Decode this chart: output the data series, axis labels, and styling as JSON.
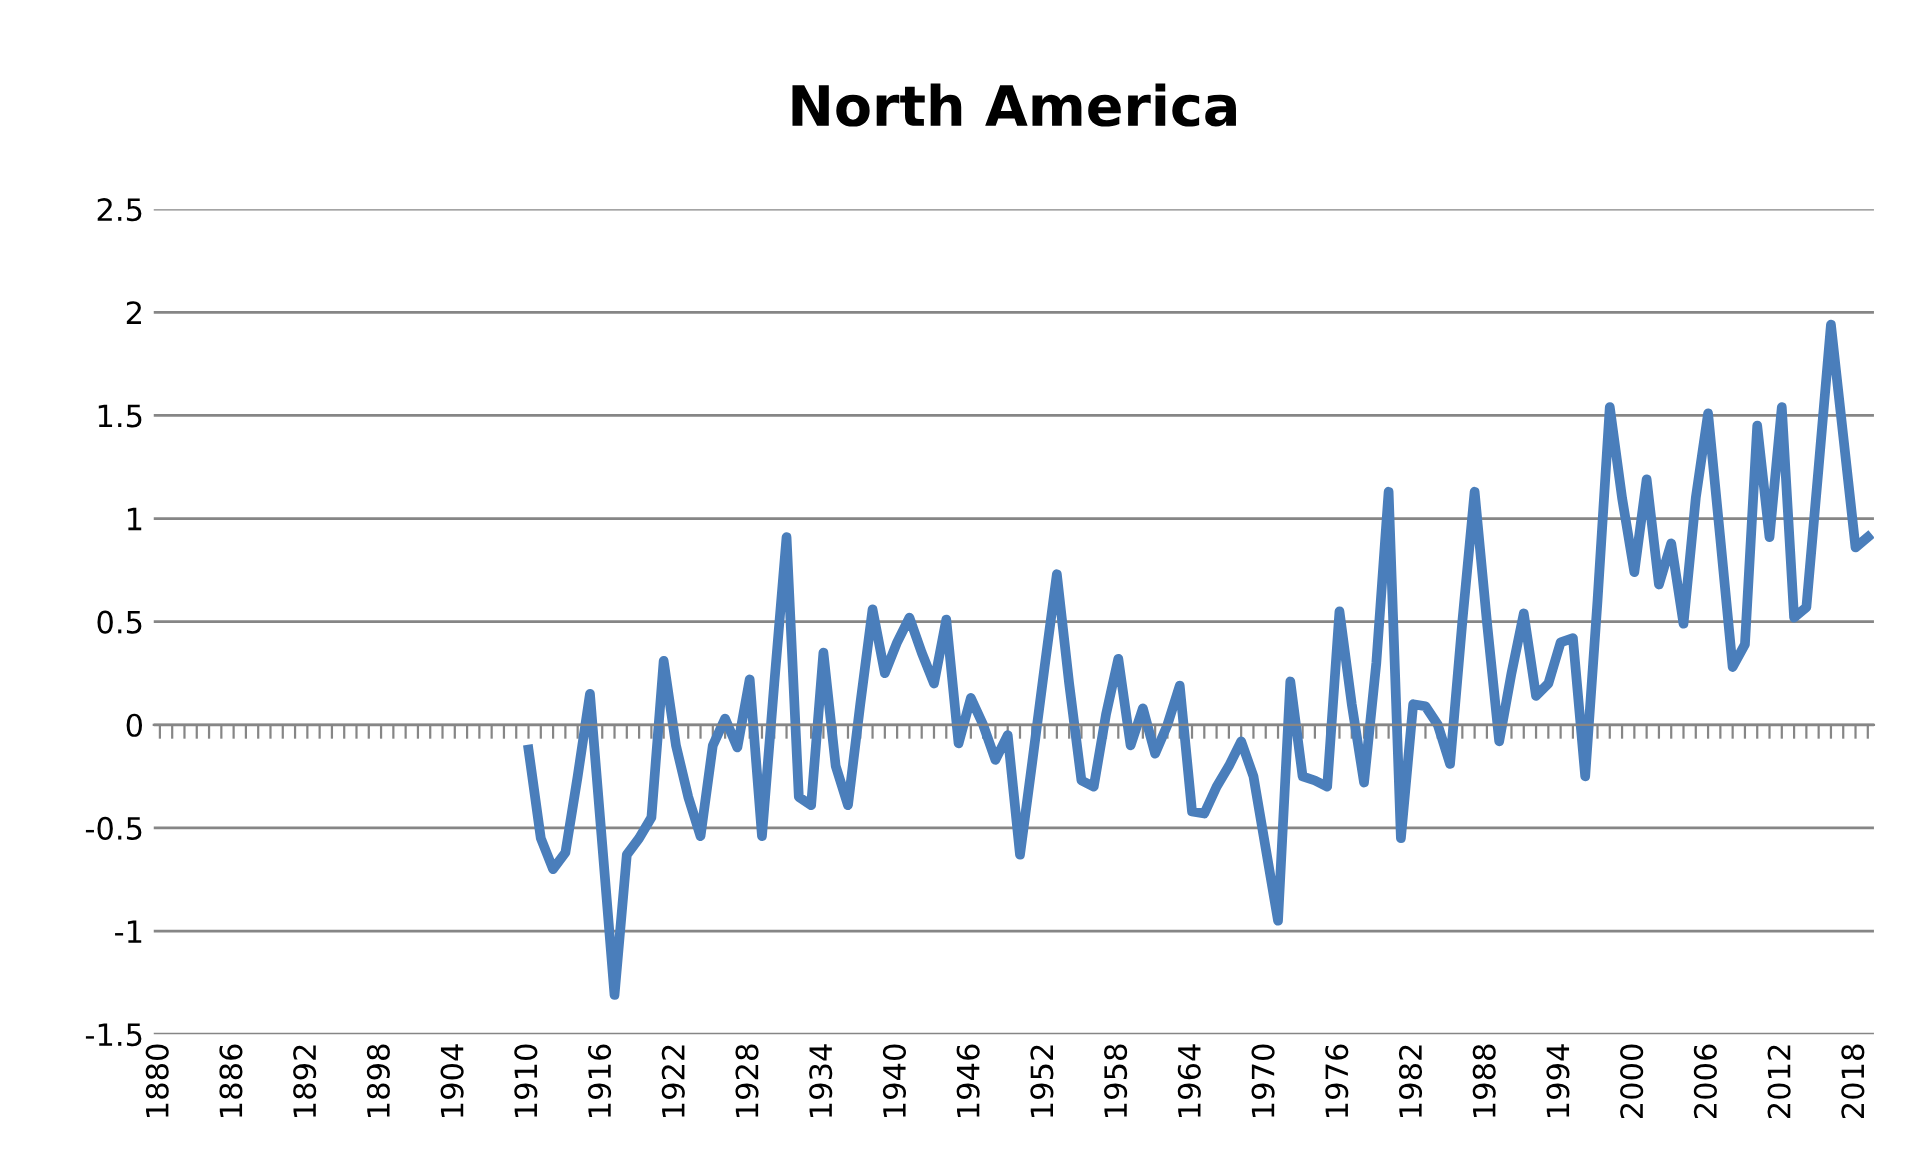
{
  "chart_data": {
    "type": "line",
    "title": "North America",
    "categories": [
      "1880",
      null,
      null,
      null,
      null,
      null,
      "1886",
      null,
      null,
      null,
      null,
      null,
      "1892",
      null,
      null,
      null,
      null,
      null,
      "1898",
      null,
      null,
      null,
      null,
      null,
      "1904",
      null,
      null,
      null,
      null,
      null,
      "1910",
      null,
      null,
      null,
      null,
      null,
      "1916",
      null,
      null,
      null,
      null,
      null,
      "1922",
      null,
      null,
      null,
      null,
      null,
      "1928",
      null,
      null,
      null,
      null,
      null,
      "1934",
      null,
      null,
      null,
      null,
      null,
      "1940",
      null,
      null,
      null,
      null,
      null,
      "1946",
      null,
      null,
      null,
      null,
      null,
      "1952",
      null,
      null,
      null,
      null,
      null,
      "1958",
      null,
      null,
      null,
      null,
      null,
      "1964",
      null,
      null,
      null,
      null,
      null,
      "1970",
      null,
      null,
      null,
      null,
      null,
      "1976",
      null,
      null,
      null,
      null,
      null,
      "1982",
      null,
      null,
      null,
      null,
      null,
      "1988",
      null,
      null,
      null,
      null,
      null,
      "1994",
      null,
      null,
      null,
      null,
      null,
      "2000",
      null,
      null,
      null,
      null,
      null,
      "2006",
      null,
      null,
      null,
      null,
      null,
      "2012",
      null,
      null,
      null,
      null,
      null,
      "2018",
      null
    ],
    "series": [
      {
        "color": "#4a7ebb",
        "values": [
          null,
          null,
          null,
          null,
          null,
          null,
          null,
          null,
          null,
          null,
          null,
          null,
          null,
          null,
          null,
          null,
          null,
          null,
          null,
          null,
          null,
          null,
          null,
          null,
          null,
          null,
          null,
          null,
          null,
          null,
          -0.12,
          -0.55,
          -0.7,
          -0.62,
          -0.25,
          0.15,
          -0.58,
          -1.31,
          -0.63,
          -0.55,
          -0.45,
          0.31,
          -0.1,
          -0.35,
          -0.54,
          -0.1,
          0.03,
          -0.11,
          0.22,
          -0.54,
          0.2,
          0.91,
          -0.35,
          -0.39,
          0.35,
          -0.2,
          -0.39,
          0.1,
          0.56,
          0.25,
          0.4,
          0.52,
          0.35,
          0.2,
          0.51,
          -0.09,
          0.13,
          0.0,
          -0.17,
          -0.05,
          -0.63,
          -0.18,
          0.28,
          0.73,
          0.2,
          -0.27,
          -0.3,
          0.05,
          0.32,
          -0.1,
          0.08,
          -0.14,
          0.0,
          0.19,
          -0.42,
          -0.43,
          -0.3,
          -0.2,
          -0.08,
          -0.25,
          -0.6,
          -0.95,
          0.21,
          -0.25,
          -0.27,
          -0.3,
          0.55,
          0.1,
          -0.28,
          0.3,
          1.13,
          -0.55,
          0.1,
          0.09,
          0.0,
          -0.19,
          0.5,
          1.13,
          0.5,
          -0.08,
          0.25,
          0.54,
          0.14,
          0.2,
          0.4,
          0.42,
          -0.25,
          0.6,
          1.54,
          1.1,
          0.74,
          1.19,
          0.68,
          0.88,
          0.49,
          1.1,
          1.51,
          0.9,
          0.28,
          0.39,
          1.45,
          0.91,
          1.54,
          0.52,
          0.57,
          1.25,
          1.94,
          1.4,
          0.86,
          0.91
        ]
      }
    ],
    "ylim": [
      -1.5,
      2.5
    ],
    "yticks": [
      -1.5,
      -1,
      -0.5,
      0,
      0.5,
      1,
      1.5,
      2,
      2.5
    ],
    "grid": "y",
    "legend": false,
    "marker": "none",
    "line_style": "solid"
  }
}
